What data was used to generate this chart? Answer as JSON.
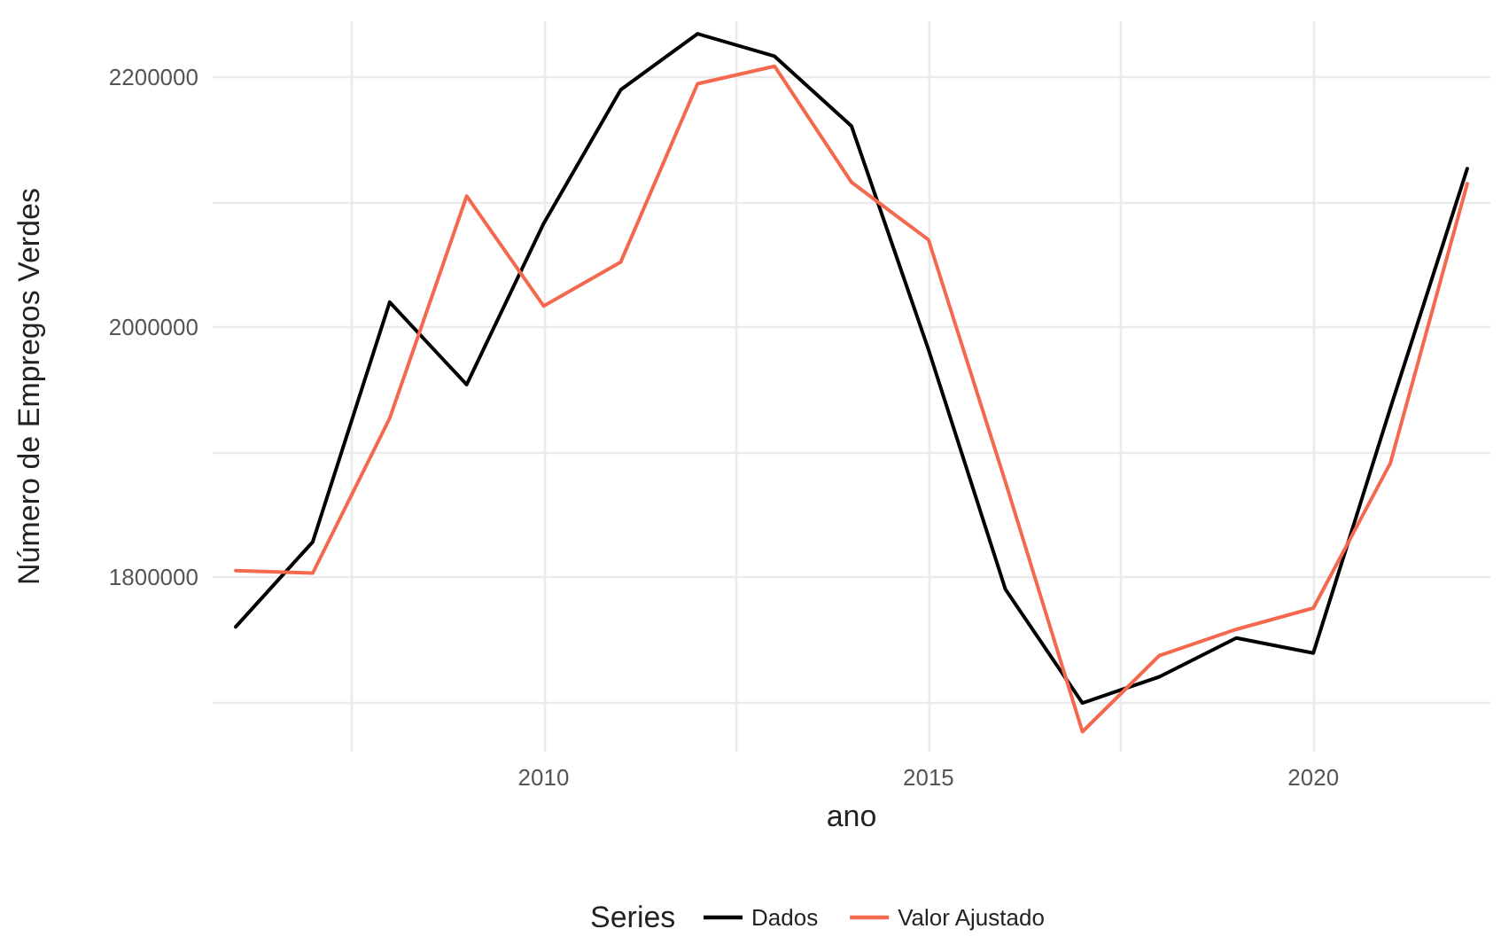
{
  "chart_data": {
    "type": "line",
    "xlabel": "ano",
    "ylabel": "Número de Empregos Verdes",
    "legend_title": "Series",
    "x": [
      2006,
      2007,
      2008,
      2009,
      2010,
      2011,
      2012,
      2013,
      2014,
      2015,
      2016,
      2017,
      2018,
      2019,
      2020,
      2021,
      2022
    ],
    "series": [
      {
        "name": "Dados",
        "color": "#000000",
        "values": [
          1760000,
          1828000,
          2020000,
          1954000,
          2083000,
          2190000,
          2235000,
          2217000,
          2161000,
          1982000,
          1790000,
          1699000,
          1720000,
          1751000,
          1739000,
          1935000,
          2127000
        ]
      },
      {
        "name": "Valor Ajustado",
        "color": "#f4684e",
        "values": [
          1805000,
          1803000,
          1927000,
          2105000,
          2017000,
          2052000,
          2195000,
          2209000,
          2116000,
          2070000,
          1876000,
          1676000,
          1737000,
          1758000,
          1775000,
          1891000,
          2115000
        ]
      }
    ],
    "xlim": [
      2005.7,
      2022.3
    ],
    "xticks": [
      {
        "value": 2007.5,
        "label": null
      },
      2010,
      {
        "value": 2012.5,
        "label": null
      },
      2015,
      {
        "value": 2017.5,
        "label": null
      },
      2020
    ],
    "ylim": [
      1660000,
      2245000
    ],
    "yticks": [
      {
        "value": 1700000,
        "label": null
      },
      1800000,
      {
        "value": 1900000,
        "label": null
      },
      2000000,
      {
        "value": 2100000,
        "label": null
      },
      2200000
    ],
    "grid": true,
    "legend": "bottom",
    "marker": "none",
    "line_style": "solid"
  }
}
